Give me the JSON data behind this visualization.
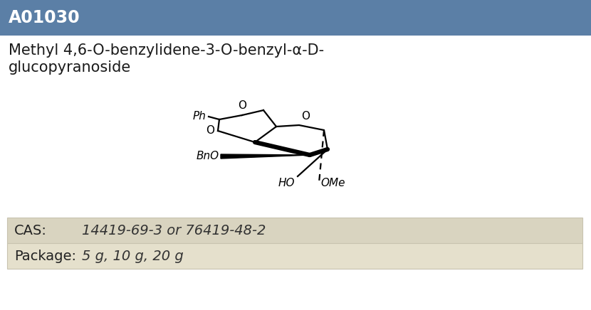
{
  "product_id": "A01030",
  "compound_name_line1": "Methyl 4,6-O-benzylidene-3-O-benzyl-α-D-",
  "compound_name_line2": "glucopyranoside",
  "cas_label": "CAS:",
  "cas_value": "14419-69-3 or 76419-48-2",
  "package_label": "Package:",
  "package_value": "5 g, 10 g, 20 g",
  "header_bg_color": "#5b7fa6",
  "header_text_color": "#ffffff",
  "body_bg_color": "#ffffff",
  "table_row1_bg": "#d9d4c0",
  "table_row2_bg": "#e5e0cc",
  "table_label_color": "#333333",
  "table_value_color": "#333333",
  "name_font_size": 15,
  "id_font_size": 17,
  "table_font_size": 14
}
